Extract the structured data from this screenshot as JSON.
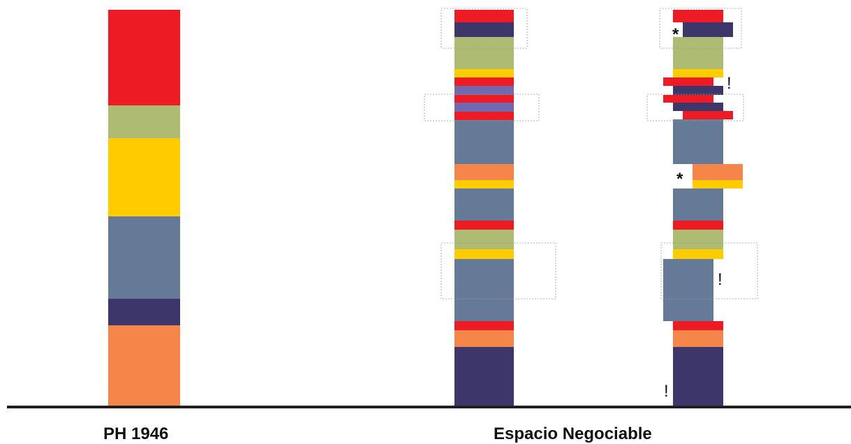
{
  "colors": {
    "red": "#ed1c24",
    "olive": "#adbc72",
    "yellow": "#ffcc00",
    "steel": "#647a96",
    "navy": "#3d366b",
    "orange": "#f58549",
    "purple": "#7268b0",
    "ground": "#231f20",
    "dashed": "#9b9b9b"
  },
  "labels": {
    "ph_1946": "PH 1946",
    "espacio_negociable": "Espacio Negociable"
  },
  "markers": {
    "asterisk": "*",
    "exclamation": "!"
  }
}
